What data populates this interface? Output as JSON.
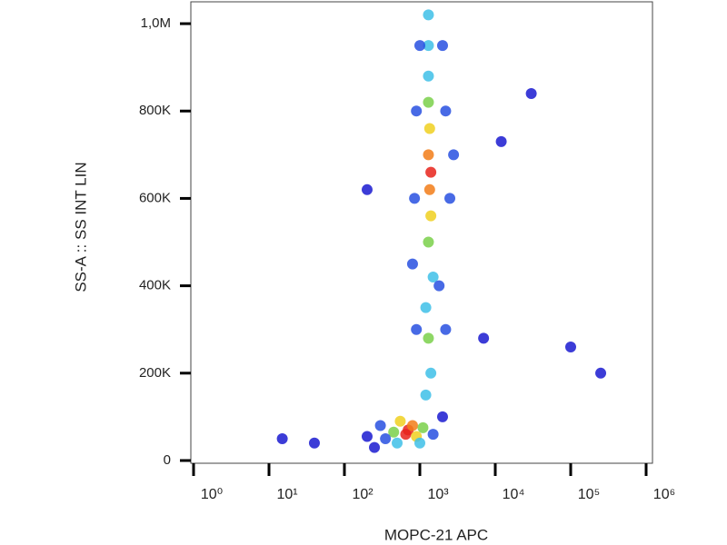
{
  "chart_data": {
    "type": "scatter",
    "x_label": "MOPC-21  APC",
    "y_label": "SS-A :: SS INT LIN",
    "x_scale": "log",
    "xlim": [
      1,
      1000000
    ],
    "xticks": [
      {
        "value": 1,
        "label": "10⁰"
      },
      {
        "value": 10,
        "label": "10¹"
      },
      {
        "value": 100,
        "label": "10²"
      },
      {
        "value": 1000,
        "label": "10³"
      },
      {
        "value": 10000,
        "label": "10⁴"
      },
      {
        "value": 100000,
        "label": "10⁵"
      },
      {
        "value": 1000000,
        "label": "10⁶"
      }
    ],
    "ylim": [
      0,
      1050000
    ],
    "yticks": [
      0,
      {
        "value": 200000,
        "label": "200K"
      },
      {
        "value": 400000,
        "label": "400K"
      },
      {
        "value": 600000,
        "label": "600K"
      },
      {
        "value": 800000,
        "label": "800K"
      },
      {
        "value": 1000000,
        "label": "1,0M"
      }
    ],
    "x": [
      700,
      650,
      800,
      550,
      900,
      450,
      1100,
      500,
      1000,
      350,
      300,
      1500,
      250,
      200,
      2000,
      1200,
      1400,
      1300,
      1200,
      1500,
      1300,
      1400,
      1350,
      1400,
      1300,
      1350,
      1300,
      1300,
      1300,
      1300,
      900,
      2200,
      850,
      2500,
      900,
      2200,
      1000,
      2000,
      1800,
      800,
      2800,
      15,
      100000,
      250000,
      30000,
      12000,
      200,
      7000,
      40
    ],
    "y": [
      70000,
      60000,
      80000,
      90000,
      55000,
      65000,
      75000,
      40000,
      40000,
      50000,
      80000,
      60000,
      30000,
      55000,
      100000,
      150000,
      200000,
      280000,
      350000,
      420000,
      500000,
      560000,
      620000,
      660000,
      700000,
      760000,
      820000,
      880000,
      950000,
      1020000,
      300000,
      300000,
      600000,
      600000,
      800000,
      800000,
      950000,
      950000,
      400000,
      450000,
      700000,
      50000,
      260000,
      200000,
      840000,
      730000,
      620000,
      280000,
      40000
    ],
    "colors": [
      "#e8231b",
      "#e8231b",
      "#f27c18",
      "#f0d020",
      "#f0d020",
      "#7ad04a",
      "#7ad04a",
      "#3ec0e8",
      "#3ec0e8",
      "#2850e0",
      "#2850e0",
      "#2850e0",
      "#1a1ad0",
      "#1a1ad0",
      "#1a1ad0",
      "#3ec0e8",
      "#3ec0e8",
      "#7ad04a",
      "#3ec0e8",
      "#3ec0e8",
      "#7ad04a",
      "#f0d020",
      "#f27c18",
      "#e8231b",
      "#f27c18",
      "#f0d020",
      "#7ad04a",
      "#3ec0e8",
      "#3ec0e8",
      "#3ec0e8",
      "#2850e0",
      "#2850e0",
      "#2850e0",
      "#2850e0",
      "#2850e0",
      "#2850e0",
      "#2850e0",
      "#2850e0",
      "#2850e0",
      "#2850e0",
      "#2850e0",
      "#1a1ad0",
      "#1a1ad0",
      "#1a1ad0",
      "#1a1ad0",
      "#1a1ad0",
      "#1a1ad0",
      "#1a1ad0",
      "#1a1ad0"
    ]
  }
}
